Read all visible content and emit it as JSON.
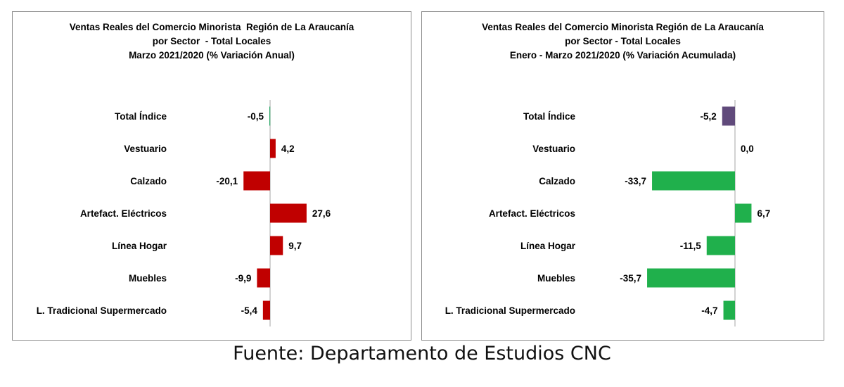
{
  "chart_data": [
    {
      "type": "bar",
      "orientation": "horizontal",
      "title": [
        "Ventas Reales del Comercio Minorista  Región de La Araucanía",
        "por Sector  - Total Locales",
        "Marzo 2021/2020 (% Variación Anual)"
      ],
      "categories": [
        "Total Índice",
        "Vestuario",
        "Calzado",
        "Artefact. Eléctricos",
        "Línea Hogar",
        "Muebles",
        "L. Tradicional Supermercado"
      ],
      "values": [
        -0.5,
        4.2,
        -20.1,
        27.6,
        9.7,
        -9.9,
        -5.4
      ],
      "value_labels": [
        "-0,5",
        "4,2",
        "-20,1",
        "27,6",
        "9,7",
        "-9,9",
        "-5,4"
      ],
      "colors": [
        "#1a9e5a",
        "#c00000",
        "#c00000",
        "#c00000",
        "#c00000",
        "#c00000",
        "#c00000"
      ],
      "xlim": [
        -35,
        35
      ],
      "grid": false,
      "legend": "none"
    },
    {
      "type": "bar",
      "orientation": "horizontal",
      "title": [
        "Ventas Reales del Comercio Minorista Región de La Araucanía",
        "por Sector - Total Locales",
        "Enero - Marzo 2021/2020 (% Variación Acumulada)"
      ],
      "categories": [
        "Total Índice",
        "Vestuario",
        "Calzado",
        "Artefact. Eléctricos",
        "Línea Hogar",
        "Muebles",
        "L. Tradicional Supermercado"
      ],
      "values": [
        -5.2,
        0.0,
        -33.7,
        6.7,
        -11.5,
        -35.7,
        -4.7
      ],
      "value_labels": [
        "-5,2",
        "0,0",
        "-33,7",
        "6,7",
        "-11,5",
        "-35,7",
        "-4,7"
      ],
      "colors": [
        "#604a7b",
        "#20b04c",
        "#20b04c",
        "#20b04c",
        "#20b04c",
        "#20b04c",
        "#20b04c"
      ],
      "xlim": [
        -37,
        10
      ],
      "grid": false,
      "legend": "none"
    }
  ],
  "source": "Fuente: Departamento de Estudios CNC"
}
